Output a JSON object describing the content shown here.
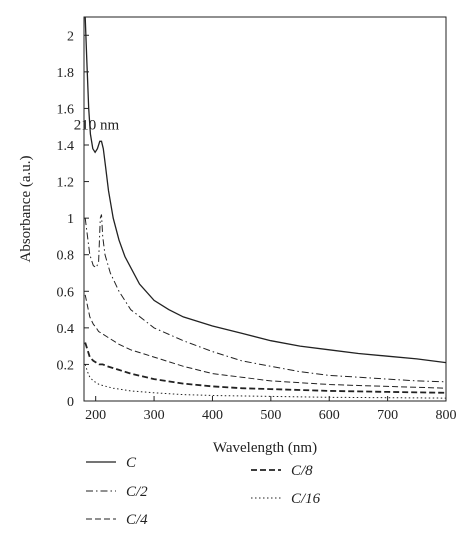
{
  "chart_data": {
    "type": "line",
    "xlabel": "Wavelength (nm)",
    "ylabel": "Absorbance (a.u.)",
    "xlim": [
      180,
      800
    ],
    "ylim": [
      0,
      2.1
    ],
    "x_ticks": [
      "200",
      "300",
      "400",
      "500",
      "600",
      "700",
      "800"
    ],
    "y_ticks": [
      "0",
      "0.2",
      "0.4",
      "0.6",
      "0.8",
      "1",
      "1.2",
      "1.4",
      "1.6",
      "1.8",
      "2"
    ],
    "annotation": {
      "text": "210 nm",
      "x": 210,
      "y": 1.42
    },
    "legend_position": "bottom",
    "grid": false,
    "series": [
      {
        "name": "C",
        "style": "solid",
        "points": [
          [
            182,
            2.1
          ],
          [
            185,
            1.85
          ],
          [
            188,
            1.6
          ],
          [
            191,
            1.46
          ],
          [
            195,
            1.38
          ],
          [
            199,
            1.36
          ],
          [
            203,
            1.38
          ],
          [
            207,
            1.42
          ],
          [
            210,
            1.42
          ],
          [
            213,
            1.38
          ],
          [
            217,
            1.28
          ],
          [
            222,
            1.15
          ],
          [
            230,
            1.0
          ],
          [
            240,
            0.88
          ],
          [
            250,
            0.79
          ],
          [
            275,
            0.64
          ],
          [
            300,
            0.55
          ],
          [
            325,
            0.5
          ],
          [
            350,
            0.46
          ],
          [
            400,
            0.41
          ],
          [
            450,
            0.37
          ],
          [
            500,
            0.33
          ],
          [
            550,
            0.3
          ],
          [
            600,
            0.28
          ],
          [
            650,
            0.26
          ],
          [
            700,
            0.245
          ],
          [
            750,
            0.23
          ],
          [
            800,
            0.21
          ]
        ]
      },
      {
        "name": "C/2",
        "style": "dashdot",
        "points": [
          [
            182,
            1.0
          ],
          [
            186,
            0.9
          ],
          [
            190,
            0.8
          ],
          [
            196,
            0.74
          ],
          [
            201,
            0.73
          ],
          [
            205,
            0.76
          ],
          [
            208,
            1.0
          ],
          [
            210,
            1.02
          ],
          [
            212,
            0.9
          ],
          [
            216,
            0.8
          ],
          [
            225,
            0.7
          ],
          [
            240,
            0.6
          ],
          [
            260,
            0.5
          ],
          [
            300,
            0.4
          ],
          [
            350,
            0.33
          ],
          [
            400,
            0.27
          ],
          [
            450,
            0.22
          ],
          [
            500,
            0.19
          ],
          [
            550,
            0.16
          ],
          [
            600,
            0.14
          ],
          [
            650,
            0.13
          ],
          [
            700,
            0.12
          ],
          [
            750,
            0.11
          ],
          [
            800,
            0.105
          ]
        ]
      },
      {
        "name": "C/4",
        "style": "dash",
        "points": [
          [
            182,
            0.58
          ],
          [
            186,
            0.52
          ],
          [
            190,
            0.46
          ],
          [
            196,
            0.42
          ],
          [
            201,
            0.4
          ],
          [
            205,
            0.38
          ],
          [
            210,
            0.37
          ],
          [
            220,
            0.35
          ],
          [
            240,
            0.31
          ],
          [
            260,
            0.28
          ],
          [
            300,
            0.24
          ],
          [
            350,
            0.19
          ],
          [
            400,
            0.15
          ],
          [
            450,
            0.13
          ],
          [
            500,
            0.11
          ],
          [
            550,
            0.1
          ],
          [
            600,
            0.09
          ],
          [
            650,
            0.085
          ],
          [
            700,
            0.08
          ],
          [
            750,
            0.075
          ],
          [
            800,
            0.07
          ]
        ]
      },
      {
        "name": "C/8",
        "style": "bold-dash",
        "points": [
          [
            182,
            0.32
          ],
          [
            186,
            0.28
          ],
          [
            190,
            0.24
          ],
          [
            196,
            0.22
          ],
          [
            201,
            0.21
          ],
          [
            206,
            0.2
          ],
          [
            212,
            0.2
          ],
          [
            220,
            0.19
          ],
          [
            240,
            0.17
          ],
          [
            260,
            0.15
          ],
          [
            300,
            0.12
          ],
          [
            350,
            0.095
          ],
          [
            400,
            0.08
          ],
          [
            450,
            0.07
          ],
          [
            500,
            0.065
          ],
          [
            600,
            0.055
          ],
          [
            700,
            0.05
          ],
          [
            800,
            0.045
          ]
        ]
      },
      {
        "name": "C/16",
        "style": "dotted",
        "points": [
          [
            182,
            0.2
          ],
          [
            186,
            0.16
          ],
          [
            190,
            0.13
          ],
          [
            196,
            0.11
          ],
          [
            201,
            0.1
          ],
          [
            206,
            0.09
          ],
          [
            212,
            0.085
          ],
          [
            230,
            0.07
          ],
          [
            260,
            0.055
          ],
          [
            300,
            0.045
          ],
          [
            350,
            0.035
          ],
          [
            400,
            0.03
          ],
          [
            500,
            0.025
          ],
          [
            600,
            0.02
          ],
          [
            700,
            0.018
          ],
          [
            800,
            0.016
          ]
        ]
      }
    ]
  },
  "colors": {
    "line": "#222222",
    "axis": "#222222"
  }
}
